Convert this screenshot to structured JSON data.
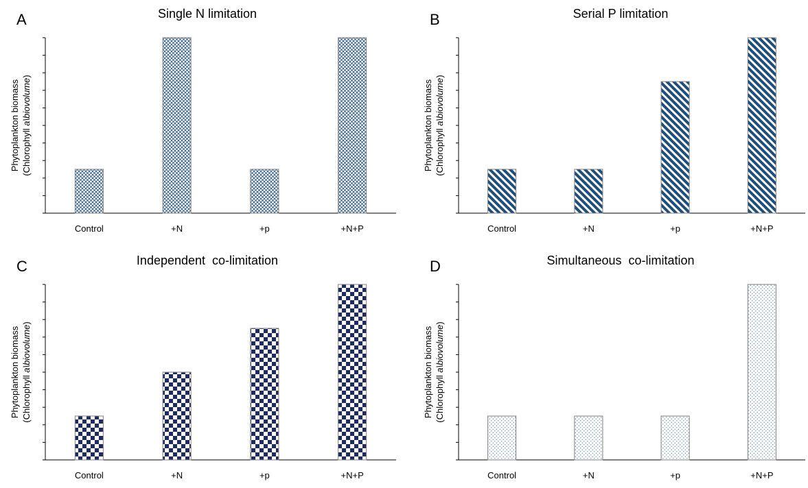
{
  "colors": {
    "axis": "#000000",
    "bar_outline": "#7f7f7f",
    "fill_A": "#1f4e79",
    "fill_B": "#1f4e79",
    "fill_C": "#1f2b5e",
    "fill_D": "#5a7fa8"
  },
  "y_axis_label": {
    "line1": "Phytoplankton biomass",
    "line2_prefix": "(Chlorophyll ",
    "line2_italic": "a\\biovolume",
    "line2_suffix": ")"
  },
  "chart_data": [
    {
      "panel": "A",
      "type": "bar",
      "title": "Single N limitation",
      "categories": [
        "Control",
        "+N",
        "+p",
        "+N+P"
      ],
      "values": [
        2.5,
        10,
        2.5,
        10
      ],
      "ylim": [
        0,
        10
      ],
      "yticks": 10,
      "tick_labels_shown": false,
      "pattern": "crosshatch",
      "ylabel": "Phytoplankton biomass (Chlorophyll a\\biovolume)",
      "xlabel": ""
    },
    {
      "panel": "B",
      "type": "bar",
      "title": "Serial P limitation",
      "categories": [
        "Control",
        "+N",
        "+p",
        "+N+P"
      ],
      "values": [
        2.5,
        2.5,
        7.5,
        10
      ],
      "ylim": [
        0,
        10
      ],
      "yticks": 10,
      "tick_labels_shown": false,
      "pattern": "diagonal-stripes",
      "ylabel": "Phytoplankton biomass (Chlorophyll a\\biovolume)",
      "xlabel": ""
    },
    {
      "panel": "C",
      "type": "bar",
      "title": "Independent  co-limitation",
      "categories": [
        "Control",
        "+N",
        "+p",
        "+N+P"
      ],
      "values": [
        2.5,
        5,
        7.5,
        10
      ],
      "ylim": [
        0,
        10
      ],
      "yticks": 10,
      "tick_labels_shown": false,
      "pattern": "checkerboard",
      "ylabel": "Phytoplankton biomass (Chlorophyll a\\biovolume)",
      "xlabel": ""
    },
    {
      "panel": "D",
      "type": "bar",
      "title": "Simultaneous  co-limitation",
      "categories": [
        "Control",
        "+N",
        "+p",
        "+N+P"
      ],
      "values": [
        2.5,
        2.5,
        2.5,
        10
      ],
      "ylim": [
        0,
        10
      ],
      "yticks": 10,
      "tick_labels_shown": false,
      "pattern": "dots",
      "ylabel": "Phytoplankton biomass (Chlorophyll a\\biovolume)",
      "xlabel": ""
    }
  ]
}
